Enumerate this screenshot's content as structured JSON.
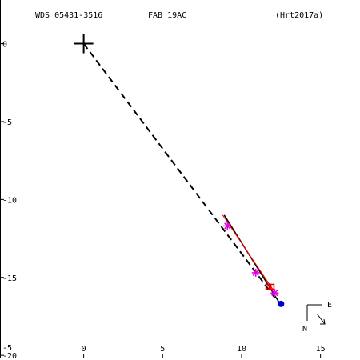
{
  "header": {
    "wds": "WDS 05431-3516",
    "discoverer": "FAB  19AC",
    "reference": "(Hrt2017a)"
  },
  "compass": {
    "north": "N",
    "east": "E"
  },
  "chart_data": {
    "type": "scatter",
    "title": "WDS 05431-3516  FAB  19AC  (Hrt2017a)",
    "xlabel": "",
    "ylabel": "",
    "xlim": [
      -5.3,
      17.5
    ],
    "ylim": [
      -20.3,
      2.8
    ],
    "x_ticks": [
      0,
      5,
      10,
      15
    ],
    "y_ticks": [
      0,
      -5,
      -10,
      -15,
      -20
    ],
    "x_tick_labels": [
      "0",
      "5",
      "10",
      "15"
    ],
    "y_tick_labels": [
      "0",
      "-5",
      "-10",
      "-15",
      "-20"
    ],
    "corner_label": "-5",
    "primary": {
      "x": 0,
      "y": 0
    },
    "dashed_line": {
      "from": [
        0,
        0
      ],
      "to": [
        12.4,
        -16.7
      ]
    },
    "orbit_line": {
      "from": [
        8.9,
        -11.0
      ],
      "to": [
        12.5,
        -16.8
      ],
      "color": "#000000"
    },
    "residual_line": {
      "from": [
        8.8,
        -11.0
      ],
      "to": [
        12.0,
        -15.8
      ],
      "color": "#ff0000"
    },
    "series": [
      {
        "marker": "asterisk",
        "color": "#e000e0",
        "points": [
          [
            9.1,
            -11.7
          ],
          [
            10.9,
            -14.7
          ],
          [
            12.1,
            -16.0
          ]
        ]
      },
      {
        "marker": "square",
        "color": "#e00000",
        "points": [
          [
            11.7,
            -15.6
          ],
          [
            11.9,
            -15.6
          ]
        ]
      },
      {
        "marker": "filled-circle",
        "color": "#0000cc",
        "points": [
          [
            12.5,
            -16.7
          ]
        ]
      }
    ]
  }
}
